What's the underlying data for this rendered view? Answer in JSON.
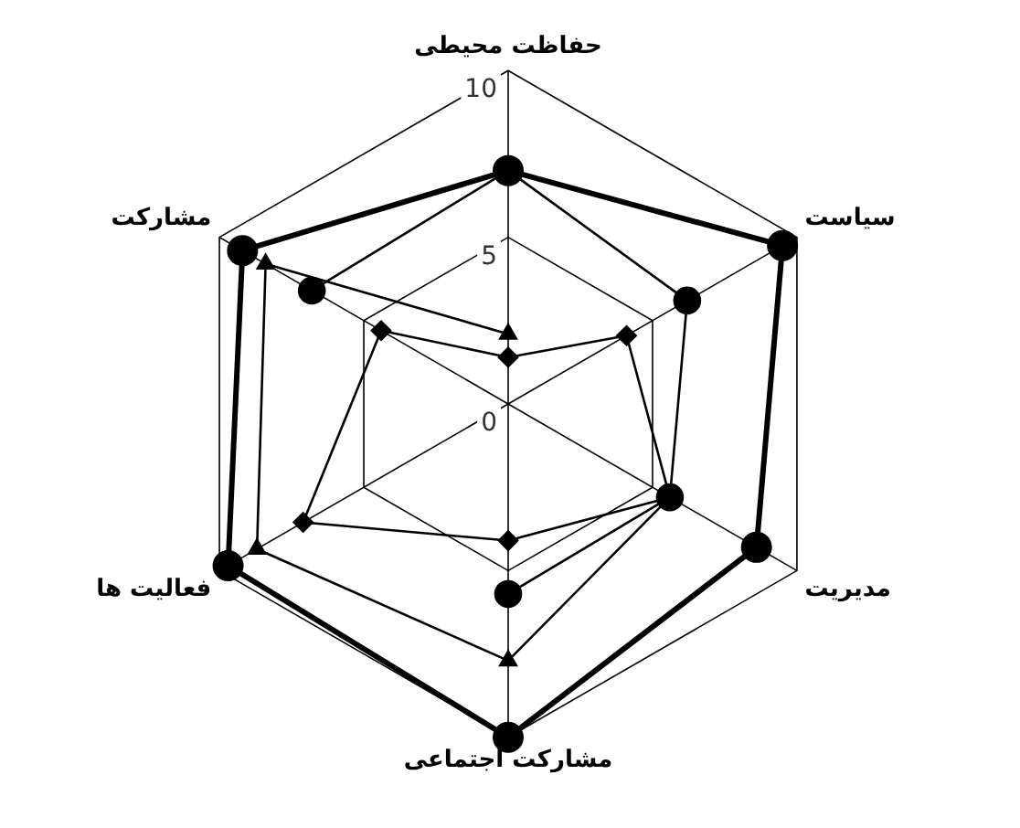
{
  "chart_data": {
    "type": "radar",
    "categories": [
      "حفاظت محیطی",
      "سیاست",
      "مدیریت",
      "مشارکت اجتماعی",
      "فعالیت ها",
      "مشارکت"
    ],
    "series": [
      {
        "color": "#000000",
        "marker": "circle",
        "values": [
          7,
          9.5,
          8.6,
          10,
          9.7,
          9.2
        ]
      },
      {
        "color": "#000000",
        "marker": "circle",
        "values": [
          7,
          6.2,
          5.6,
          5.7,
          null,
          6.8
        ]
      },
      {
        "color": "#000000",
        "marker": "triangle",
        "values": [
          2.1,
          null,
          5.6,
          7.7,
          8.7,
          8.4
        ]
      },
      {
        "color": "#000000",
        "marker": "diamond",
        "values": [
          1.4,
          4.1,
          5.6,
          4.1,
          7.1,
          4.4
        ]
      }
    ],
    "ylim": [
      0,
      10
    ],
    "yticks": [
      0,
      5,
      10
    ],
    "grid": true,
    "legend": false,
    "line_style": "solid"
  }
}
